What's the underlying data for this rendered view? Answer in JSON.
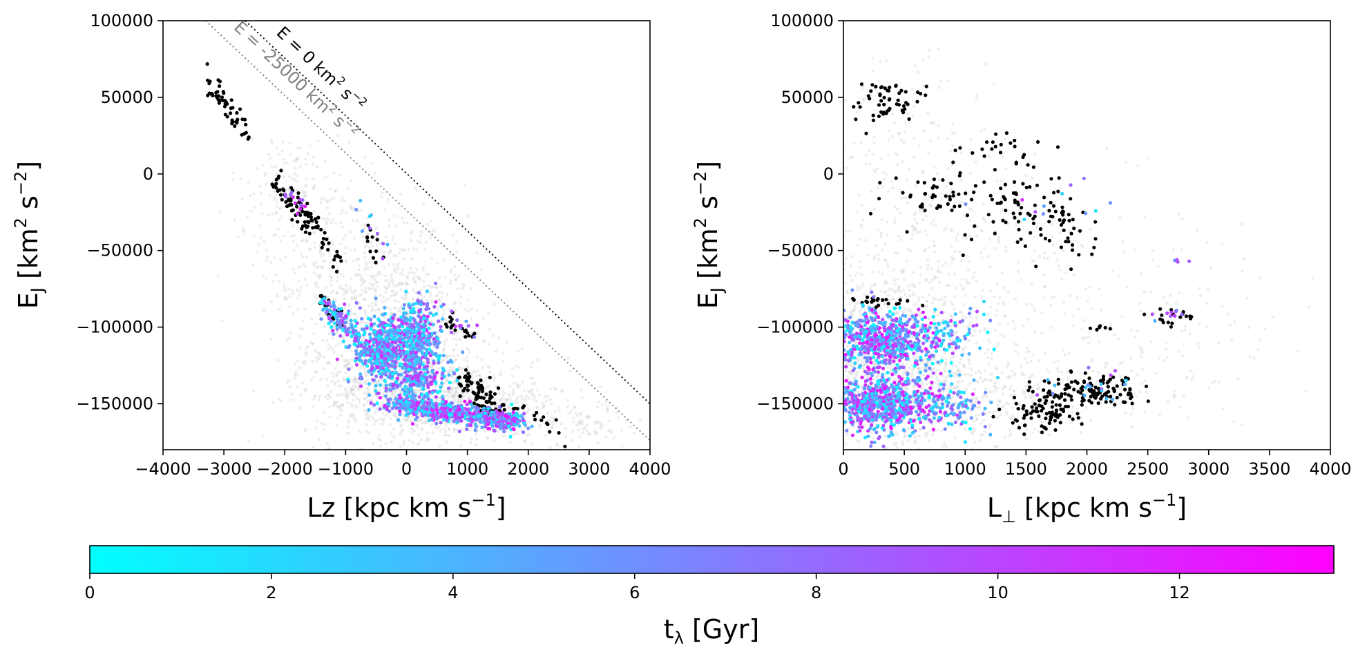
{
  "colors": {
    "background_points": "#cfcfcf",
    "substructure_points": "#000000",
    "colormap_start": "#00ffff",
    "colormap_end": "#ff00ff",
    "energy_line_zero": "#000000",
    "energy_line_bound": "#808080"
  },
  "chart_data": [
    {
      "id": "lz-energy",
      "type": "scatter",
      "title": "",
      "xlabel_main": "Lz [kpc km s",
      "xlabel_sup": "−1",
      "xlabel_end": "]",
      "ylabel_main": "E",
      "ylabel_sub": "J",
      "ylabel_mid": " [km",
      "ylabel_sup1": "2",
      "ylabel_mid2": " s",
      "ylabel_sup2": "−2",
      "ylabel_end": "]",
      "xlim": [
        -4000,
        4000
      ],
      "ylim": [
        -180000,
        100000
      ],
      "xticks": [
        -4000,
        -3000,
        -2000,
        -1000,
        0,
        1000,
        2000,
        3000,
        4000
      ],
      "xtick_labels": [
        "−4000",
        "−3000",
        "−2000",
        "−1000",
        "0",
        "1000",
        "2000",
        "3000",
        "4000"
      ],
      "yticks": [
        -150000,
        -100000,
        -50000,
        0,
        50000,
        100000
      ],
      "ytick_labels": [
        "−150000",
        "−100000",
        "−50000",
        "0",
        "50000",
        "100000"
      ],
      "reference_lines": [
        {
          "name": "E = 0",
          "label_main": "E = 0 km",
          "label_sup1": "2",
          "label_mid": " s",
          "label_sup2": "−2",
          "from": [
            -2650,
            100000
          ],
          "to": [
            4000,
            -150000
          ],
          "label_anchor": [
            -2150,
            91500
          ],
          "color": "#000000"
        },
        {
          "name": "E = -25000",
          "label_main": "E = -25000 km",
          "label_sup1": "2",
          "label_mid": " s",
          "label_sup2": "−2",
          "from": [
            -3300,
            100000
          ],
          "to": [
            4000,
            -174000
          ],
          "label_anchor": [
            -2850,
            95000
          ],
          "color": "#808080"
        }
      ],
      "background_clouds": [
        {
          "cx": -200,
          "cy": -110000,
          "sx": 700,
          "sy": 30000,
          "n": 900
        },
        {
          "cx": 300,
          "cy": -145000,
          "sx": 900,
          "sy": 14000,
          "n": 700
        },
        {
          "cx": -1000,
          "cy": -60000,
          "sx": 700,
          "sy": 28000,
          "n": 350
        },
        {
          "cx": -1900,
          "cy": -10000,
          "sx": 500,
          "sy": 18000,
          "n": 150
        },
        {
          "cx": 1600,
          "cy": -155000,
          "sx": 800,
          "sy": 12000,
          "n": 250
        },
        {
          "cx": 3000,
          "cy": -165000,
          "sx": 500,
          "sy": 8000,
          "n": 60
        }
      ],
      "black_groups": [
        {
          "from": [
            -3350,
            68000
          ],
          "to": [
            -2600,
            22000
          ],
          "spread": [
            60,
            2500
          ],
          "n": 55
        },
        {
          "from": [
            -2300,
            0
          ],
          "to": [
            -1500,
            -35000
          ],
          "spread": [
            80,
            3500
          ],
          "n": 75
        },
        {
          "from": [
            -1450,
            -38000
          ],
          "to": [
            -1100,
            -58000
          ],
          "spread": [
            60,
            3000
          ],
          "n": 18
        },
        {
          "from": [
            -650,
            -36000
          ],
          "to": [
            -400,
            -52000
          ],
          "spread": [
            60,
            4000
          ],
          "n": 12
        },
        {
          "from": [
            -1380,
            -80000
          ],
          "to": [
            -1050,
            -100000
          ],
          "spread": [
            50,
            2000
          ],
          "n": 20
        },
        {
          "from": [
            650,
            -95000
          ],
          "to": [
            1100,
            -108000
          ],
          "spread": [
            60,
            3000
          ],
          "n": 22
        },
        {
          "from": [
            950,
            -132000
          ],
          "to": [
            1500,
            -160000
          ],
          "spread": [
            120,
            4000
          ],
          "n": 90
        },
        {
          "from": [
            1700,
            -150000
          ],
          "to": [
            2600,
            -170000
          ],
          "spread": [
            90,
            3000
          ],
          "n": 18
        }
      ],
      "colored_groups": [
        {
          "cx": -350,
          "cy": -115000,
          "sx": 230,
          "sy": 13000,
          "n": 420,
          "tmin": 0,
          "tmax": 12
        },
        {
          "cx": 150,
          "cy": -108000,
          "sx": 220,
          "sy": 12000,
          "n": 380,
          "tmin": 0,
          "tmax": 12
        },
        {
          "from": [
            -1300,
            -85000
          ],
          "to": [
            -400,
            -128000
          ],
          "spread": [
            90,
            3500
          ],
          "n": 170,
          "tmin": 0,
          "tmax": 11
        },
        {
          "from": [
            -200,
            -150000
          ],
          "to": [
            1850,
            -162000
          ],
          "spread": [
            150,
            3500
          ],
          "n": 620,
          "tmin": 0,
          "tmax": 13
        },
        {
          "cx": 200,
          "cy": -135000,
          "sx": 280,
          "sy": 6000,
          "n": 160,
          "tmin": 0,
          "tmax": 12
        },
        {
          "from": [
            -1950,
            -12000
          ],
          "to": [
            -1700,
            -22000
          ],
          "spread": [
            60,
            3000
          ],
          "n": 14,
          "tmin": 8,
          "tmax": 12
        },
        {
          "from": [
            -800,
            -20000
          ],
          "to": [
            -300,
            -55000
          ],
          "spread": [
            60,
            3500
          ],
          "n": 10,
          "tmin": 1,
          "tmax": 10
        },
        {
          "from": [
            600,
            -88000
          ],
          "to": [
            1100,
            -108000
          ],
          "spread": [
            60,
            4000
          ],
          "n": 14,
          "tmin": 3,
          "tmax": 12
        }
      ]
    },
    {
      "id": "lperp-energy",
      "type": "scatter",
      "title": "",
      "xlabel_main": "L",
      "xlabel_sub": "⊥",
      "xlabel_mid": " [kpc km s",
      "xlabel_sup": "−1",
      "xlabel_end": "]",
      "ylabel_main": "E",
      "ylabel_sub": "J",
      "ylabel_mid": " [km",
      "ylabel_sup1": "2",
      "ylabel_mid2": " s",
      "ylabel_sup2": "−2",
      "ylabel_end": "]",
      "xlim": [
        0,
        4000
      ],
      "ylim": [
        -180000,
        100000
      ],
      "xticks": [
        0,
        500,
        1000,
        1500,
        2000,
        2500,
        3000,
        3500,
        4000
      ],
      "xtick_labels": [
        "0",
        "500",
        "1000",
        "1500",
        "2000",
        "2500",
        "3000",
        "3500",
        "4000"
      ],
      "yticks": [
        -150000,
        -100000,
        -50000,
        0,
        50000,
        100000
      ],
      "ytick_labels": [
        "−150000",
        "−100000",
        "−50000",
        "0",
        "50000",
        "100000"
      ],
      "reference_lines": [],
      "background_clouds": [
        {
          "cx": 250,
          "cy": -120000,
          "sx": 450,
          "sy": 30000,
          "n": 1000
        },
        {
          "cx": 700,
          "cy": -145000,
          "sx": 600,
          "sy": 15000,
          "n": 500
        },
        {
          "cx": 600,
          "cy": -60000,
          "sx": 500,
          "sy": 35000,
          "n": 300
        },
        {
          "cx": 1500,
          "cy": -80000,
          "sx": 900,
          "sy": 45000,
          "n": 250
        },
        {
          "cx": 2500,
          "cy": -110000,
          "sx": 700,
          "sy": 30000,
          "n": 120
        },
        {
          "cx": 400,
          "cy": 30000,
          "sx": 400,
          "sy": 30000,
          "n": 120
        }
      ],
      "black_groups": [
        {
          "cx": 380,
          "cy": 48000,
          "sx": 160,
          "sy": 7000,
          "n": 55
        },
        {
          "cx": 1150,
          "cy": 20000,
          "sx": 100,
          "sy": 4000,
          "n": 10
        },
        {
          "cx": 1380,
          "cy": 17000,
          "sx": 70,
          "sy": 7000,
          "n": 10
        },
        {
          "cx": 800,
          "cy": -12000,
          "sx": 200,
          "sy": 8000,
          "n": 45
        },
        {
          "cx": 1420,
          "cy": -22000,
          "sx": 250,
          "sy": 14000,
          "n": 80
        },
        {
          "cx": 1880,
          "cy": -40000,
          "sx": 100,
          "sy": 10000,
          "n": 22
        },
        {
          "cx": 300,
          "cy": -83000,
          "sx": 200,
          "sy": 1500,
          "n": 25
        },
        {
          "cx": 1650,
          "cy": -156000,
          "sx": 170,
          "sy": 7000,
          "n": 80
        },
        {
          "cx": 2050,
          "cy": -142000,
          "sx": 220,
          "sy": 5000,
          "n": 120
        },
        {
          "cx": 2700,
          "cy": -94000,
          "sx": 120,
          "sy": 3000,
          "n": 18
        },
        {
          "cx": 2120,
          "cy": -101000,
          "sx": 50,
          "sy": 1500,
          "n": 6
        }
      ],
      "colored_groups": [
        {
          "cx": 300,
          "cy": -108000,
          "sx": 230,
          "sy": 10000,
          "n": 650,
          "tmin": 0,
          "tmax": 13
        },
        {
          "cx": 330,
          "cy": -150000,
          "sx": 250,
          "sy": 9000,
          "n": 750,
          "tmin": 0,
          "tmax": 13
        },
        {
          "cx": 900,
          "cy": -105000,
          "sx": 150,
          "sy": 9000,
          "n": 60,
          "tmin": 0,
          "tmax": 10
        },
        {
          "cx": 950,
          "cy": -150000,
          "sx": 150,
          "sy": 8000,
          "n": 70,
          "tmin": 0,
          "tmax": 10
        },
        {
          "cx": 2100,
          "cy": -140000,
          "sx": 200,
          "sy": 6000,
          "n": 18,
          "tmin": 2,
          "tmax": 10
        },
        {
          "cx": 2700,
          "cy": -92000,
          "sx": 150,
          "sy": 4000,
          "n": 10,
          "tmin": 4,
          "tmax": 12
        },
        {
          "cx": 1750,
          "cy": -20000,
          "sx": 250,
          "sy": 6000,
          "n": 12,
          "tmin": 0,
          "tmax": 12
        },
        {
          "cx": 2770,
          "cy": -56000,
          "sx": 40,
          "sy": 2000,
          "n": 4,
          "tmin": 6,
          "tmax": 11
        }
      ]
    }
  ],
  "colorbar": {
    "cmap": "cool",
    "range": [
      0,
      13.7
    ],
    "ticks": [
      0,
      2,
      4,
      6,
      8,
      10,
      12
    ],
    "tick_labels": [
      "0",
      "2",
      "4",
      "6",
      "8",
      "10",
      "12"
    ],
    "label_main": "t",
    "label_sub": "λ",
    "label_end": " [Gyr]"
  }
}
